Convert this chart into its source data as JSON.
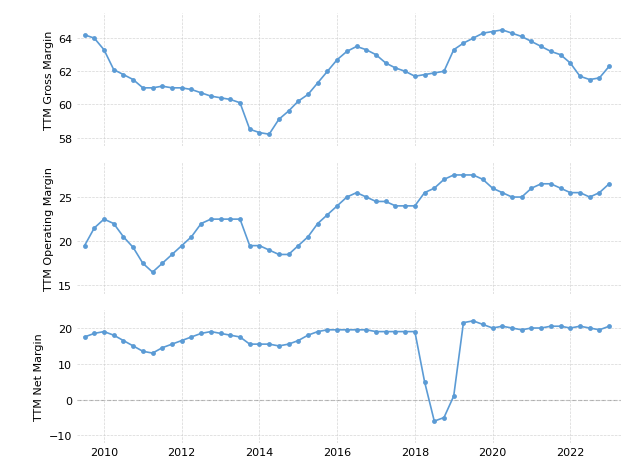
{
  "gross_margin": {
    "x": [
      2009.5,
      2009.75,
      2010.0,
      2010.25,
      2010.5,
      2010.75,
      2011.0,
      2011.25,
      2011.5,
      2011.75,
      2012.0,
      2012.25,
      2012.5,
      2012.75,
      2013.0,
      2013.25,
      2013.5,
      2013.75,
      2014.0,
      2014.25,
      2014.5,
      2014.75,
      2015.0,
      2015.25,
      2015.5,
      2015.75,
      2016.0,
      2016.25,
      2016.5,
      2016.75,
      2017.0,
      2017.25,
      2017.5,
      2017.75,
      2018.0,
      2018.25,
      2018.5,
      2018.75,
      2019.0,
      2019.25,
      2019.5,
      2019.75,
      2020.0,
      2020.25,
      2020.5,
      2020.75,
      2021.0,
      2021.25,
      2021.5,
      2021.75,
      2022.0,
      2022.25,
      2022.5,
      2022.75,
      2023.0
    ],
    "y": [
      64.2,
      64.0,
      63.3,
      62.1,
      61.8,
      61.5,
      61.0,
      61.0,
      61.1,
      61.0,
      61.0,
      60.9,
      60.7,
      60.5,
      60.4,
      60.3,
      60.1,
      58.5,
      58.3,
      58.2,
      59.1,
      59.6,
      60.2,
      60.6,
      61.3,
      62.0,
      62.7,
      63.2,
      63.5,
      63.3,
      63.0,
      62.5,
      62.2,
      62.0,
      61.7,
      61.8,
      61.9,
      62.0,
      63.3,
      63.7,
      64.0,
      64.3,
      64.4,
      64.5,
      64.3,
      64.1,
      63.8,
      63.5,
      63.2,
      63.0,
      62.5,
      61.7,
      61.5,
      61.6,
      62.3
    ]
  },
  "operating_margin": {
    "x": [
      2009.5,
      2009.75,
      2010.0,
      2010.25,
      2010.5,
      2010.75,
      2011.0,
      2011.25,
      2011.5,
      2011.75,
      2012.0,
      2012.25,
      2012.5,
      2012.75,
      2013.0,
      2013.25,
      2013.5,
      2013.75,
      2014.0,
      2014.25,
      2014.5,
      2014.75,
      2015.0,
      2015.25,
      2015.5,
      2015.75,
      2016.0,
      2016.25,
      2016.5,
      2016.75,
      2017.0,
      2017.25,
      2017.5,
      2017.75,
      2018.0,
      2018.25,
      2018.5,
      2018.75,
      2019.0,
      2019.25,
      2019.5,
      2019.75,
      2020.0,
      2020.25,
      2020.5,
      2020.75,
      2021.0,
      2021.25,
      2021.5,
      2021.75,
      2022.0,
      2022.25,
      2022.5,
      2022.75,
      2023.0
    ],
    "y": [
      19.5,
      21.5,
      22.5,
      22.0,
      20.5,
      19.3,
      17.5,
      16.5,
      17.5,
      18.5,
      19.5,
      20.5,
      22.0,
      22.5,
      22.5,
      22.5,
      22.5,
      19.5,
      19.5,
      19.0,
      18.5,
      18.5,
      19.5,
      20.5,
      22.0,
      23.0,
      24.0,
      25.0,
      25.5,
      25.0,
      24.5,
      24.5,
      24.0,
      24.0,
      24.0,
      25.5,
      26.0,
      27.0,
      27.5,
      27.5,
      27.5,
      27.0,
      26.0,
      25.5,
      25.0,
      25.0,
      26.0,
      26.5,
      26.5,
      26.0,
      25.5,
      25.5,
      25.0,
      25.5,
      26.5
    ]
  },
  "net_margin": {
    "x": [
      2009.5,
      2009.75,
      2010.0,
      2010.25,
      2010.5,
      2010.75,
      2011.0,
      2011.25,
      2011.5,
      2011.75,
      2012.0,
      2012.25,
      2012.5,
      2012.75,
      2013.0,
      2013.25,
      2013.5,
      2013.75,
      2014.0,
      2014.25,
      2014.5,
      2014.75,
      2015.0,
      2015.25,
      2015.5,
      2015.75,
      2016.0,
      2016.25,
      2016.5,
      2016.75,
      2017.0,
      2017.25,
      2017.5,
      2017.75,
      2018.0,
      2018.25,
      2018.5,
      2018.75,
      2019.0,
      2019.25,
      2019.5,
      2019.75,
      2020.0,
      2020.25,
      2020.5,
      2020.75,
      2021.0,
      2021.25,
      2021.5,
      2021.75,
      2022.0,
      2022.25,
      2022.5,
      2022.75,
      2023.0
    ],
    "y": [
      17.5,
      18.5,
      19.0,
      18.0,
      16.5,
      15.0,
      13.5,
      13.0,
      14.5,
      15.5,
      16.5,
      17.5,
      18.5,
      19.0,
      18.5,
      18.0,
      17.5,
      15.5,
      15.5,
      15.5,
      15.0,
      15.5,
      16.5,
      18.0,
      19.0,
      19.5,
      19.5,
      19.5,
      19.5,
      19.5,
      19.0,
      19.0,
      19.0,
      19.0,
      19.0,
      5.0,
      -6.0,
      -5.0,
      1.0,
      21.5,
      22.0,
      21.0,
      20.0,
      20.5,
      20.0,
      19.5,
      20.0,
      20.0,
      20.5,
      20.5,
      20.0,
      20.5,
      20.0,
      19.5,
      20.5
    ]
  },
  "line_color": "#5b9bd5",
  "marker_color": "#5b9bd5",
  "bg_color": "#ffffff",
  "grid_color": "#cccccc",
  "ylabel1": "TTM Gross Margin",
  "ylabel2": "TTM Operating Margin",
  "ylabel3": "TTM Net Margin",
  "ylim1": [
    57.5,
    65.5
  ],
  "ylim2": [
    14.0,
    29.0
  ],
  "ylim3": [
    -12.0,
    25.0
  ],
  "yticks1": [
    58,
    60,
    62,
    64
  ],
  "yticks2": [
    15,
    20,
    25
  ],
  "yticks3": [
    -10,
    0,
    10,
    20
  ],
  "xticks": [
    2010,
    2012,
    2014,
    2016,
    2018,
    2020,
    2022
  ],
  "xticklabels": [
    "2010",
    "2012",
    "2014",
    "2016",
    "2018",
    "2020",
    "2022"
  ],
  "dashed_zero_color": "#aaaaaa",
  "font_size": 8,
  "marker_size": 3.5
}
